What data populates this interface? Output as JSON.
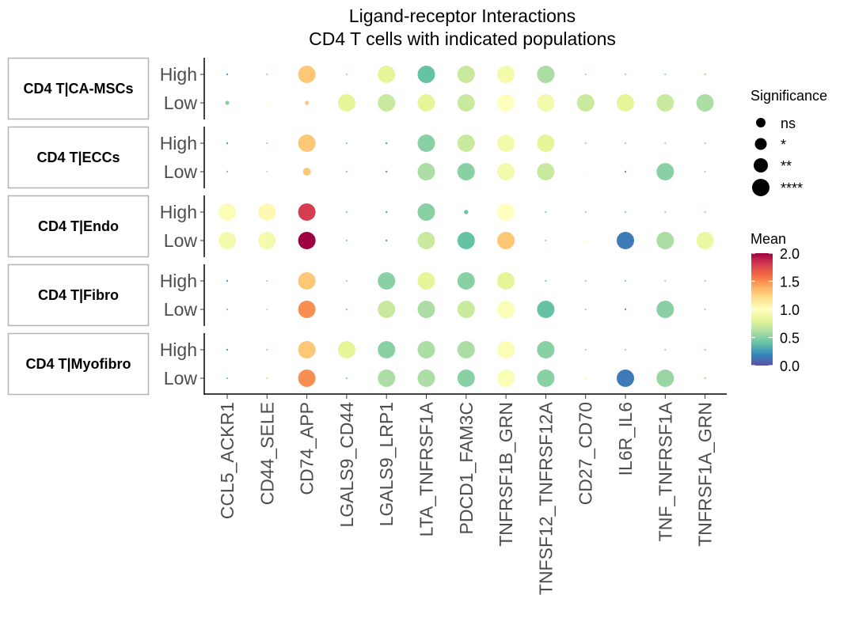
{
  "chart_data": {
    "type": "dot",
    "title": "Ligand-receptor Interactions",
    "subtitle": "CD4 T cells with indicated populations",
    "categories": [
      "CCL5_ACKR1",
      "CD44_SELE",
      "CD74_APP",
      "LGALS9_CD44",
      "LGALS9_LRP1",
      "LTA_TNFRSF1A",
      "PDCD1_FAM3C",
      "TNFRSF1B_GRN",
      "TNFSF12_TNFRSF12A",
      "CD27_CD70",
      "IL6R_IL6",
      "TNF_TNFRSF1A",
      "TNFRSF1A_GRN"
    ],
    "row_levels": [
      "High",
      "Low"
    ],
    "legend_size": {
      "title": "Significance",
      "labels": [
        "ns",
        "*",
        "**",
        "****"
      ]
    },
    "legend_color": {
      "title": "Mean",
      "min": 0,
      "max": 2,
      "ticks": [
        "0.0",
        "0.5",
        "1.0",
        "1.5",
        "2.0"
      ],
      "palette": "Spectral"
    },
    "panels": [
      {
        "name": "CD4 T|CA-MSCs",
        "rows": {
          "High": {
            "mean": [
              0.3,
              0.6,
              1.3,
              0.6,
              0.8,
              0.4,
              0.7,
              0.9,
              0.6,
              0.6,
              0.6,
              0.6,
              0.6
            ],
            "sig": [
              0,
              0,
              3,
              0,
              3,
              3,
              3,
              3,
              3,
              0,
              0,
              0,
              0
            ]
          },
          "Low": {
            "mean": [
              0.5,
              1.0,
              1.3,
              0.8,
              0.7,
              0.8,
              0.7,
              1.0,
              0.9,
              0.7,
              0.8,
              0.7,
              0.6
            ],
            "sig": [
              1,
              0,
              1,
              3,
              3,
              3,
              3,
              3,
              3,
              3,
              3,
              3,
              3
            ]
          }
        }
      },
      {
        "name": "CD4 T|ECCs",
        "rows": {
          "High": {
            "mean": [
              0.3,
              0.6,
              1.3,
              0.5,
              0.3,
              0.5,
              0.7,
              0.9,
              0.8,
              0.6,
              0.6,
              0.6,
              0.6
            ],
            "sig": [
              0,
              0,
              3,
              0,
              0,
              3,
              3,
              3,
              3,
              0,
              0,
              0,
              0
            ]
          },
          "Low": {
            "mean": [
              0.5,
              0.7,
              1.3,
              0.5,
              0.3,
              0.6,
              0.5,
              0.9,
              0.7,
              1.0,
              0.3,
              0.5,
              0.6
            ],
            "sig": [
              0,
              0,
              2,
              0,
              0,
              3,
              3,
              3,
              3,
              0,
              0,
              3,
              0
            ]
          }
        }
      },
      {
        "name": "CD4 T|Endo",
        "rows": {
          "High": {
            "mean": [
              0.95,
              1.05,
              1.8,
              0.5,
              0.3,
              0.5,
              0.4,
              1.0,
              0.5,
              0.6,
              0.5,
              0.6,
              0.6
            ],
            "sig": [
              3,
              3,
              3,
              0,
              0,
              3,
              1,
              3,
              0,
              0,
              0,
              0,
              0
            ]
          },
          "Low": {
            "mean": [
              0.9,
              0.9,
              2.0,
              0.5,
              0.3,
              0.7,
              0.4,
              1.3,
              0.6,
              0.95,
              0.15,
              0.6,
              0.85
            ],
            "sig": [
              3,
              3,
              3,
              0,
              0,
              3,
              3,
              3,
              0,
              0,
              3,
              3,
              3
            ]
          }
        }
      },
      {
        "name": "CD4 T|Fibro",
        "rows": {
          "High": {
            "mean": [
              0.3,
              0.6,
              1.3,
              0.6,
              0.5,
              0.8,
              0.5,
              0.8,
              0.5,
              0.6,
              0.5,
              0.6,
              0.6
            ],
            "sig": [
              0,
              0,
              3,
              0,
              3,
              3,
              3,
              3,
              0,
              0,
              0,
              0,
              0
            ]
          },
          "Low": {
            "mean": [
              0.5,
              0.7,
              1.5,
              0.5,
              0.7,
              0.6,
              0.7,
              0.95,
              0.4,
              0.6,
              0.3,
              0.5,
              0.6
            ],
            "sig": [
              0,
              0,
              3,
              0,
              3,
              3,
              3,
              3,
              3,
              0,
              0,
              3,
              0
            ]
          }
        }
      },
      {
        "name": "CD4 T|Myofibro",
        "rows": {
          "High": {
            "mean": [
              0.3,
              0.6,
              1.3,
              0.8,
              0.5,
              0.6,
              0.6,
              0.95,
              0.5,
              0.6,
              0.6,
              0.6,
              0.6
            ],
            "sig": [
              0,
              0,
              3,
              3,
              3,
              3,
              3,
              3,
              3,
              0,
              0,
              0,
              0
            ]
          },
          "Low": {
            "mean": [
              0.5,
              0.7,
              1.5,
              0.5,
              0.6,
              0.6,
              0.5,
              0.95,
              0.5,
              0.9,
              0.15,
              0.55,
              0.6
            ],
            "sig": [
              0,
              0,
              3,
              0,
              3,
              3,
              3,
              3,
              3,
              0,
              3,
              3,
              0
            ]
          }
        }
      }
    ]
  }
}
